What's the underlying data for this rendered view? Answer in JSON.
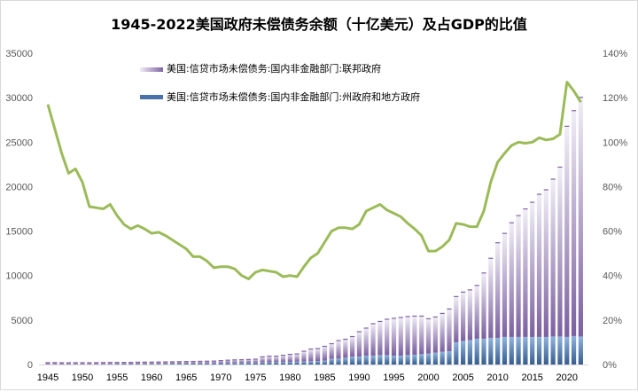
{
  "chart_data": {
    "type": "bar",
    "title": "1945-2022美国政府未偿债务余额（十亿美元）及占GDP的比值",
    "stacked": true,
    "categories": [
      1945,
      1946,
      1947,
      1948,
      1949,
      1950,
      1951,
      1952,
      1953,
      1954,
      1955,
      1956,
      1957,
      1958,
      1959,
      1960,
      1961,
      1962,
      1963,
      1964,
      1965,
      1966,
      1967,
      1968,
      1969,
      1970,
      1971,
      1972,
      1973,
      1974,
      1975,
      1976,
      1977,
      1978,
      1979,
      1980,
      1981,
      1982,
      1983,
      1984,
      1985,
      1986,
      1987,
      1988,
      1989,
      1990,
      1991,
      1992,
      1993,
      1994,
      1995,
      1996,
      1997,
      1998,
      1999,
      2000,
      2001,
      2002,
      2003,
      2004,
      2005,
      2006,
      2007,
      2008,
      2009,
      2010,
      2011,
      2012,
      2013,
      2014,
      2015,
      2016,
      2017,
      2018,
      2019,
      2020,
      2021,
      2022
    ],
    "x_tick_labels": [
      "1945",
      "1950",
      "1955",
      "1960",
      "1965",
      "1970",
      "1975",
      "1980",
      "1985",
      "1990",
      "1995",
      "2000",
      "2005",
      "2010",
      "2015",
      "2020"
    ],
    "y_left": {
      "ylim": [
        0,
        35000
      ],
      "ticks": [
        "0",
        "5000",
        "10000",
        "15000",
        "20000",
        "25000",
        "30000",
        "35000"
      ]
    },
    "y_right": {
      "ylim": [
        0,
        140
      ],
      "ticks": [
        "0%",
        "20%",
        "40%",
        "60%",
        "80%",
        "100%",
        "120%",
        "140%"
      ]
    },
    "grid": false,
    "legend_position": "top-left",
    "series": [
      {
        "name": "美国:信贷市场未偿债务:国内非金融部门:州政府和地方政府",
        "kind": "bar",
        "axis": "left",
        "color": "#4f81bd",
        "values": [
          15,
          15,
          16,
          18,
          20,
          22,
          25,
          28,
          32,
          36,
          42,
          48,
          52,
          58,
          64,
          70,
          76,
          82,
          90,
          98,
          104,
          110,
          118,
          126,
          134,
          145,
          160,
          175,
          190,
          205,
          220,
          235,
          250,
          265,
          280,
          300,
          320,
          345,
          370,
          400,
          430,
          660,
          660,
          760,
          900,
          900,
          1000,
          1000,
          1060,
          1060,
          1000,
          1000,
          1060,
          1100,
          1160,
          1230,
          1330,
          1430,
          1500,
          2500,
          2650,
          2750,
          2900,
          2900,
          3000,
          3000,
          3100,
          3100,
          3100,
          3100,
          3100,
          3100,
          3100,
          3150,
          3150,
          3100,
          3200,
          3150
        ]
      },
      {
        "name": "美国:信贷市场未偿债务:国内非金融部门:联邦政府",
        "kind": "bar",
        "axis": "left",
        "color": "#8064a2",
        "values": [
          250,
          255,
          240,
          235,
          240,
          240,
          235,
          240,
          245,
          250,
          250,
          245,
          245,
          255,
          260,
          260,
          265,
          270,
          275,
          285,
          290,
          295,
          300,
          305,
          310,
          355,
          385,
          405,
          410,
          415,
          440,
          685,
          750,
          735,
          820,
          900,
          930,
          1205,
          1430,
          1450,
          1670,
          1740,
          2090,
          2140,
          2300,
          2850,
          3150,
          3650,
          3840,
          4090,
          4250,
          4350,
          4390,
          4400,
          4340,
          3970,
          4070,
          4370,
          4800,
          5200,
          5550,
          5700,
          6050,
          7450,
          9000,
          10750,
          11700,
          12900,
          13700,
          14450,
          15200,
          16100,
          16600,
          17750,
          19100,
          23750,
          25400,
          26950
        ]
      },
      {
        "name": "",
        "kind": "line",
        "axis": "right",
        "color": "#9bbb59",
        "unit": "%",
        "values": [
          117,
          106,
          95,
          86,
          88,
          82,
          71,
          70.5,
          70,
          72,
          67,
          63,
          61,
          62.5,
          61,
          59,
          59.5,
          58,
          56,
          54,
          52,
          48.5,
          48.5,
          46.5,
          43.5,
          44,
          44,
          43,
          40,
          38.5,
          41.5,
          42.5,
          42,
          41.5,
          39.5,
          40,
          39.5,
          44,
          48,
          50,
          55,
          60,
          61.5,
          61.5,
          61,
          63,
          69,
          70.5,
          72,
          69.5,
          68,
          66.5,
          63.5,
          61,
          58,
          51,
          51,
          53,
          56,
          63.5,
          63,
          62,
          62,
          69,
          82,
          91,
          95,
          98.5,
          100,
          99.5,
          100,
          102,
          101,
          101.5,
          103.5,
          127,
          123,
          118
        ]
      }
    ]
  }
}
